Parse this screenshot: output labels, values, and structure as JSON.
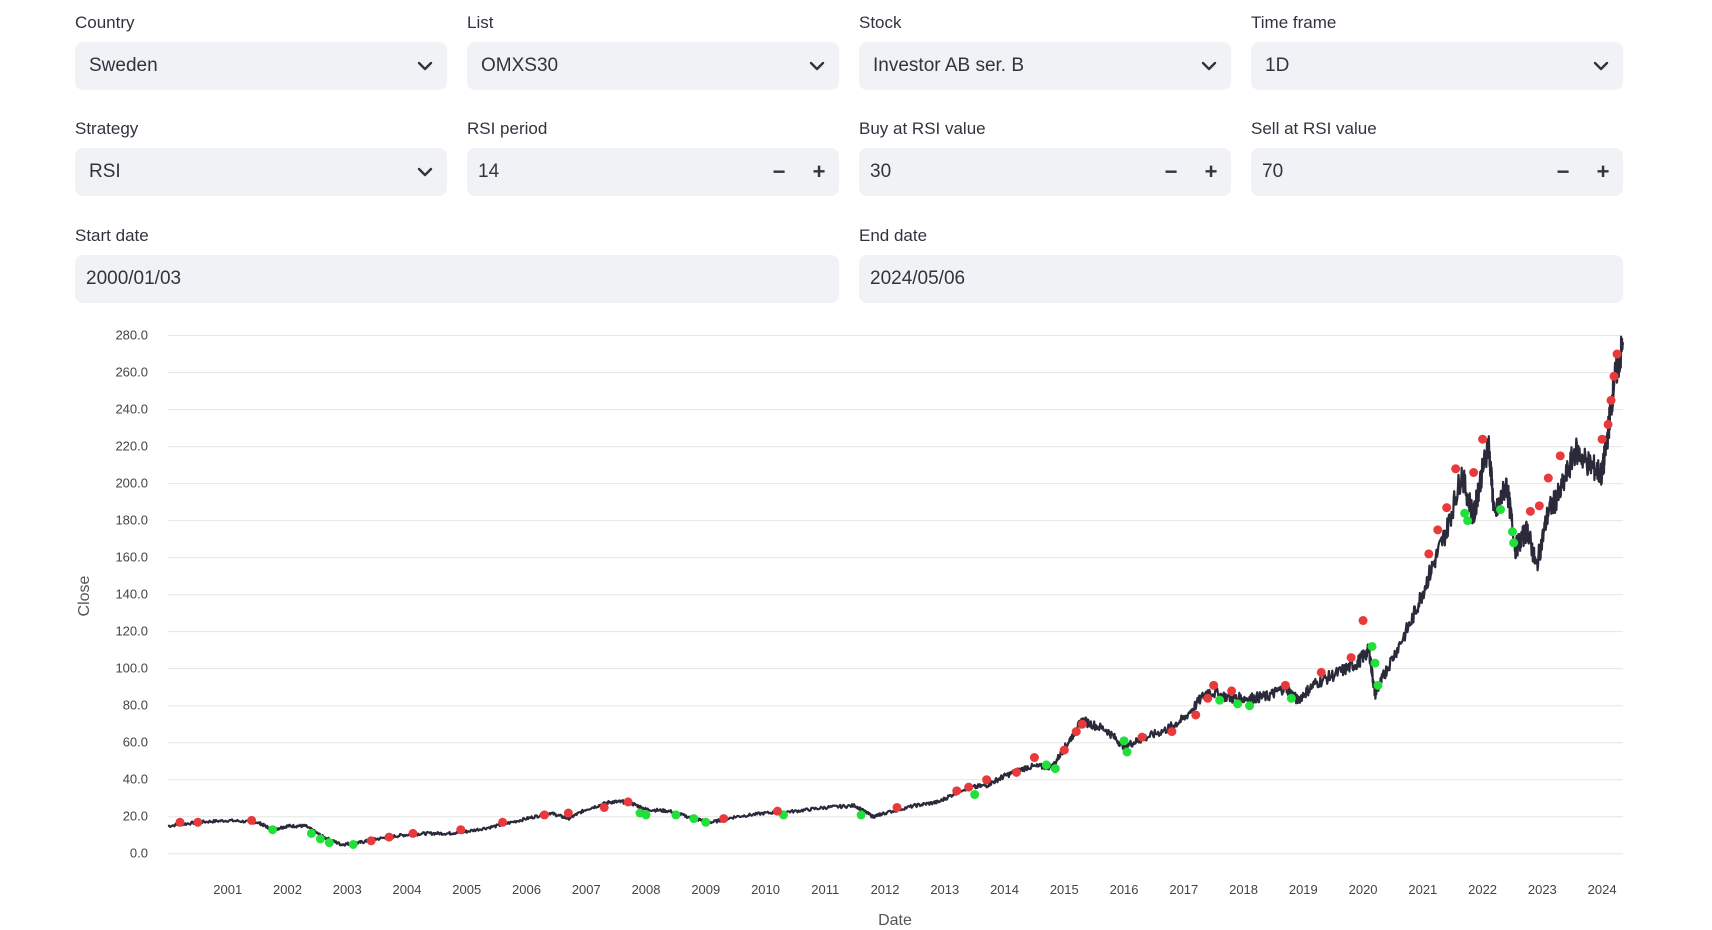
{
  "controls": {
    "country": {
      "label": "Country",
      "value": "Sweden"
    },
    "list": {
      "label": "List",
      "value": "OMXS30"
    },
    "stock": {
      "label": "Stock",
      "value": "Investor AB ser. B"
    },
    "timeframe": {
      "label": "Time frame",
      "value": "1D"
    },
    "strategy": {
      "label": "Strategy",
      "value": "RSI"
    },
    "rsi_period": {
      "label": "RSI period",
      "value": "14"
    },
    "buy_rsi": {
      "label": "Buy at RSI value",
      "value": "30"
    },
    "sell_rsi": {
      "label": "Sell at RSI value",
      "value": "70"
    },
    "start_date": {
      "label": "Start date",
      "value": "2000/01/03"
    },
    "end_date": {
      "label": "End date",
      "value": "2024/05/06"
    }
  },
  "colors": {
    "line": "#2a2a3a",
    "buy": "#22e03a",
    "sell": "#e83a3a",
    "grid": "#e6e6e6"
  },
  "chart_data": {
    "type": "line",
    "xlabel": "Date",
    "ylabel": "Close",
    "x_ticks": [
      "2001",
      "2002",
      "2003",
      "2004",
      "2005",
      "2006",
      "2007",
      "2008",
      "2009",
      "2010",
      "2011",
      "2012",
      "2013",
      "2014",
      "2015",
      "2016",
      "2017",
      "2018",
      "2019",
      "2020",
      "2021",
      "2022",
      "2023",
      "2024"
    ],
    "y_ticks": [
      "0.0",
      "20.0",
      "40.0",
      "60.0",
      "80.0",
      "100.0",
      "120.0",
      "140.0",
      "160.0",
      "180.0",
      "200.0",
      "220.0",
      "240.0",
      "260.0",
      "280.0"
    ],
    "xlim": [
      2000.0,
      2024.35
    ],
    "ylim": [
      -5,
      283
    ],
    "grid": true,
    "series": [
      {
        "values": [
          [
            2000.0,
            15
          ],
          [
            2000.5,
            17
          ],
          [
            2001.0,
            18
          ],
          [
            2001.5,
            17
          ],
          [
            2001.75,
            13
          ],
          [
            2002.0,
            15
          ],
          [
            2002.3,
            15
          ],
          [
            2002.6,
            9
          ],
          [
            2002.9,
            5
          ],
          [
            2003.2,
            6
          ],
          [
            2003.5,
            8
          ],
          [
            2003.9,
            10
          ],
          [
            2004.3,
            11
          ],
          [
            2004.7,
            11
          ],
          [
            2005.0,
            12
          ],
          [
            2005.5,
            15
          ],
          [
            2006.0,
            19
          ],
          [
            2006.4,
            22
          ],
          [
            2006.7,
            19
          ],
          [
            2007.0,
            24
          ],
          [
            2007.4,
            28
          ],
          [
            2007.7,
            28
          ],
          [
            2008.0,
            24
          ],
          [
            2008.4,
            23
          ],
          [
            2008.8,
            19
          ],
          [
            2009.1,
            17
          ],
          [
            2009.5,
            20
          ],
          [
            2010.0,
            22
          ],
          [
            2010.5,
            23
          ],
          [
            2011.0,
            25
          ],
          [
            2011.5,
            26
          ],
          [
            2011.8,
            20
          ],
          [
            2012.0,
            22
          ],
          [
            2012.5,
            26
          ],
          [
            2012.9,
            28
          ],
          [
            2013.3,
            35
          ],
          [
            2013.7,
            37
          ],
          [
            2014.0,
            42
          ],
          [
            2014.4,
            47
          ],
          [
            2014.8,
            47
          ],
          [
            2015.1,
            62
          ],
          [
            2015.3,
            72
          ],
          [
            2015.7,
            67
          ],
          [
            2016.0,
            58
          ],
          [
            2016.3,
            62
          ],
          [
            2016.7,
            67
          ],
          [
            2017.0,
            73
          ],
          [
            2017.4,
            88
          ],
          [
            2017.8,
            84
          ],
          [
            2018.1,
            84
          ],
          [
            2018.4,
            85
          ],
          [
            2018.7,
            90
          ],
          [
            2018.9,
            83
          ],
          [
            2019.2,
            92
          ],
          [
            2019.6,
            98
          ],
          [
            2019.9,
            103
          ],
          [
            2020.1,
            110
          ],
          [
            2020.2,
            86
          ],
          [
            2020.4,
            100
          ],
          [
            2020.8,
            125
          ],
          [
            2021.1,
            150
          ],
          [
            2021.4,
            175
          ],
          [
            2021.65,
            205
          ],
          [
            2021.85,
            182
          ],
          [
            2021.95,
            200
          ],
          [
            2022.1,
            222
          ],
          [
            2022.2,
            182
          ],
          [
            2022.4,
            200
          ],
          [
            2022.55,
            165
          ],
          [
            2022.75,
            175
          ],
          [
            2022.9,
            155
          ],
          [
            2023.1,
            185
          ],
          [
            2023.3,
            195
          ],
          [
            2023.55,
            218
          ],
          [
            2023.8,
            210
          ],
          [
            2024.0,
            205
          ],
          [
            2024.1,
            228
          ],
          [
            2024.2,
            255
          ],
          [
            2024.35,
            275
          ]
        ]
      }
    ],
    "buy_signals": [
      [
        2001.75,
        13
      ],
      [
        2002.4,
        11
      ],
      [
        2002.55,
        8
      ],
      [
        2002.7,
        6
      ],
      [
        2003.1,
        5
      ],
      [
        2007.9,
        22
      ],
      [
        2008.0,
        21
      ],
      [
        2008.5,
        21
      ],
      [
        2008.8,
        19
      ],
      [
        2009.0,
        17
      ],
      [
        2010.3,
        21
      ],
      [
        2011.6,
        21
      ],
      [
        2013.5,
        32
      ],
      [
        2014.7,
        48
      ],
      [
        2014.85,
        46
      ],
      [
        2016.0,
        61
      ],
      [
        2016.05,
        55
      ],
      [
        2017.6,
        83
      ],
      [
        2017.9,
        81
      ],
      [
        2018.1,
        80
      ],
      [
        2018.8,
        84
      ],
      [
        2020.15,
        112
      ],
      [
        2020.2,
        103
      ],
      [
        2020.25,
        91
      ],
      [
        2021.7,
        184
      ],
      [
        2021.75,
        180
      ],
      [
        2022.3,
        186
      ],
      [
        2022.5,
        174
      ],
      [
        2022.52,
        168
      ]
    ],
    "sell_signals": [
      [
        2000.2,
        17
      ],
      [
        2000.5,
        17
      ],
      [
        2001.4,
        18
      ],
      [
        2003.4,
        7
      ],
      [
        2003.7,
        9
      ],
      [
        2004.1,
        11
      ],
      [
        2004.9,
        13
      ],
      [
        2005.6,
        17
      ],
      [
        2006.3,
        21
      ],
      [
        2006.7,
        22
      ],
      [
        2007.3,
        25
      ],
      [
        2007.7,
        28
      ],
      [
        2009.3,
        19
      ],
      [
        2010.2,
        23
      ],
      [
        2012.2,
        25
      ],
      [
        2013.2,
        34
      ],
      [
        2013.4,
        36
      ],
      [
        2013.7,
        40
      ],
      [
        2014.2,
        44
      ],
      [
        2014.5,
        52
      ],
      [
        2015.0,
        56
      ],
      [
        2015.2,
        66
      ],
      [
        2015.3,
        70
      ],
      [
        2016.3,
        63
      ],
      [
        2016.8,
        66
      ],
      [
        2017.2,
        75
      ],
      [
        2017.4,
        84
      ],
      [
        2017.5,
        91
      ],
      [
        2017.8,
        88
      ],
      [
        2018.7,
        91
      ],
      [
        2019.3,
        98
      ],
      [
        2019.8,
        106
      ],
      [
        2020.0,
        126
      ],
      [
        2021.1,
        162
      ],
      [
        2021.25,
        175
      ],
      [
        2021.4,
        187
      ],
      [
        2021.55,
        208
      ],
      [
        2021.85,
        206
      ],
      [
        2022.0,
        224
      ],
      [
        2022.8,
        185
      ],
      [
        2022.95,
        188
      ],
      [
        2023.1,
        203
      ],
      [
        2023.3,
        215
      ],
      [
        2024.0,
        224
      ],
      [
        2024.1,
        232
      ],
      [
        2024.15,
        245
      ],
      [
        2024.2,
        258
      ],
      [
        2024.25,
        270
      ]
    ]
  }
}
